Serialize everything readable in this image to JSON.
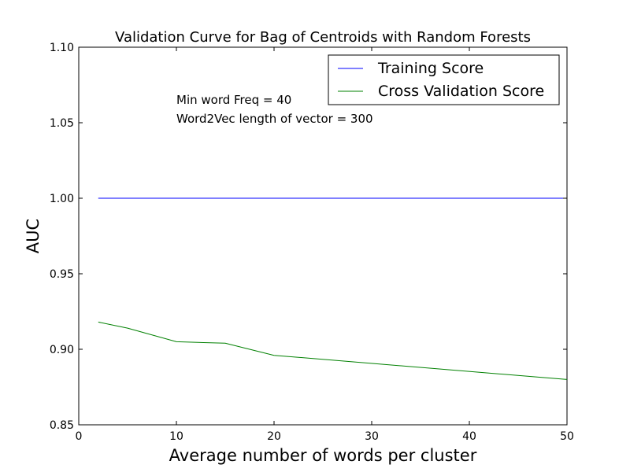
{
  "chart_data": {
    "type": "line",
    "title": "Validation Curve for Bag of Centroids with Random Forests",
    "xlabel": "Average number of words per cluster",
    "ylabel": "AUC",
    "xlim": [
      0,
      50
    ],
    "ylim": [
      0.85,
      1.1
    ],
    "xticks": [
      0,
      10,
      20,
      30,
      40,
      50
    ],
    "xtick_labels": [
      "0",
      "10",
      "20",
      "30",
      "40",
      "50"
    ],
    "yticks": [
      0.85,
      0.9,
      0.95,
      1.0,
      1.05,
      1.1
    ],
    "ytick_labels": [
      "0.85",
      "0.90",
      "0.95",
      "1.00",
      "1.05",
      "1.10"
    ],
    "grid": false,
    "legend_position": "top-right",
    "annotations": [
      "Min word Freq = 40",
      "Word2Vec length of vector = 300"
    ],
    "series": [
      {
        "name": "Training Score",
        "color": "#0000ff",
        "x": [
          2,
          5,
          10,
          15,
          20,
          50
        ],
        "y": [
          1.0,
          1.0,
          1.0,
          1.0,
          1.0,
          1.0
        ]
      },
      {
        "name": "Cross Validation Score",
        "color": "#008000",
        "x": [
          2,
          5,
          10,
          15,
          20,
          50
        ],
        "y": [
          0.918,
          0.914,
          0.905,
          0.904,
          0.896,
          0.88
        ]
      }
    ]
  }
}
